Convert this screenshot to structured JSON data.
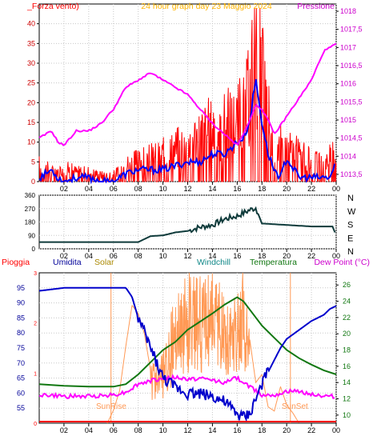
{
  "colors": {
    "wind_speed": "#ff0000",
    "wind_gust": "#ff0000",
    "wind_avg": "#0000ff",
    "pressure": "#ff00ff",
    "direction": "#0f3b3b",
    "humidity": "#0000cc",
    "solar": "#ff9955",
    "temperature": "#117711",
    "dewpoint": "#ff00ff",
    "rain": "#ff0000",
    "sunline": "#ff9955",
    "title": "#ffb400",
    "windchill": "#118888"
  },
  "header": {
    "title": "24 hour graph day  23 Maggio 2024",
    "wind_label": "_Forza vento)",
    "pressure_label": "Pressione"
  },
  "dir_labels": [
    "N",
    "W",
    "S",
    "E",
    "N"
  ],
  "bottom_header": {
    "rain": "Pioggia",
    "humidity": "Umidita",
    "solar": "Solar",
    "windchill": "Windchill",
    "temperature": "Temperatura",
    "dewpoint": "Dew Point (°C)"
  },
  "annotations": {
    "sunrise": "SunRise",
    "sunset": "SunSet"
  },
  "chart_data": [
    {
      "type": "line",
      "title": "24 hour graph day  23 Maggio 2024",
      "x_ticks": [
        "02",
        "04",
        "06",
        "08",
        "10",
        "12",
        "14",
        "16",
        "18",
        "20",
        "22",
        "00"
      ],
      "ylim": [
        0,
        45
      ],
      "y_ticks": [
        0,
        5,
        10,
        15,
        20,
        25,
        30,
        35,
        40
      ],
      "y2lim": [
        1013.3,
        1018.2
      ],
      "y2_ticks": [
        "1013,5",
        "1014",
        "1014,5",
        "1015",
        "1015,5",
        "1016",
        "1016,5",
        "1017",
        "1017,5",
        "1018"
      ],
      "series": [
        {
          "axis": "y",
          "hours": [
            0,
            1,
            2,
            3,
            4,
            5,
            6,
            7,
            8,
            9,
            10,
            11,
            12,
            13,
            14,
            15,
            16,
            17,
            17.5,
            18,
            18.5,
            19,
            20,
            21,
            22,
            23,
            23.5,
            24
          ],
          "values": [
            5,
            3,
            4,
            3,
            3,
            2,
            2,
            5,
            6,
            7,
            8,
            10,
            12,
            14,
            16,
            17,
            18,
            25,
            44,
            30,
            20,
            12,
            10,
            8,
            6,
            5,
            7,
            9
          ]
        },
        {
          "axis": "y",
          "hours": [
            0,
            0.5,
            1,
            1.5,
            2,
            3,
            4,
            5,
            6,
            7,
            8,
            9,
            10,
            11,
            12,
            13,
            14,
            15,
            16,
            16.5,
            17,
            17.5,
            18,
            18.5,
            19,
            19.5,
            20,
            21,
            22,
            23,
            23.5,
            24
          ],
          "values": [
            1,
            2,
            3,
            1,
            0,
            1,
            1,
            0,
            0,
            2,
            3,
            3,
            3,
            4,
            5,
            5,
            7,
            7,
            10,
            11,
            15,
            26,
            15,
            7,
            3,
            1,
            6,
            1,
            1,
            1,
            1,
            5
          ]
        },
        {
          "axis": "y2",
          "hours": [
            0,
            1,
            1.5,
            2,
            3,
            4,
            5,
            6,
            7,
            8,
            9,
            10,
            11,
            12,
            13,
            14,
            15,
            16,
            16.5,
            17,
            17.5,
            18,
            18.5,
            19,
            20,
            21,
            22,
            23,
            24
          ],
          "values": [
            1014.5,
            1014.7,
            1014.4,
            1014.3,
            1014.7,
            1014.7,
            1014.9,
            1015.3,
            1015.9,
            1016.1,
            1016.3,
            1016.1,
            1015.9,
            1015.7,
            1015.3,
            1014.9,
            1014.6,
            1014.3,
            1014.6,
            1015.0,
            1015.4,
            1015.3,
            1015.0,
            1014.6,
            1015.1,
            1015.6,
            1016.1,
            1016.9,
            1017.1
          ]
        }
      ]
    },
    {
      "type": "line",
      "x_ticks": [
        "02",
        "04",
        "06",
        "08",
        "10",
        "12",
        "14",
        "16",
        "18",
        "20",
        "22",
        "00"
      ],
      "ylim": [
        0,
        360
      ],
      "y_ticks": [
        0,
        90,
        180,
        270,
        360
      ],
      "y_tick_labels": [
        "0",
        "90",
        "180",
        "270",
        "360"
      ],
      "series": [
        {
          "hours": [
            0,
            2,
            4,
            6,
            8,
            9,
            10,
            11,
            12,
            13,
            14,
            15,
            16,
            17,
            17.5,
            18,
            20,
            22,
            23.7,
            24
          ],
          "values": [
            45,
            45,
            45,
            45,
            45,
            85,
            90,
            110,
            120,
            145,
            160,
            200,
            220,
            260,
            275,
            170,
            160,
            150,
            150,
            90
          ]
        }
      ]
    },
    {
      "type": "line",
      "x_ticks": [
        "02",
        "04",
        "06",
        "08",
        "10",
        "12",
        "14",
        "16",
        "18",
        "20",
        "22",
        "00"
      ],
      "ylim": [
        50,
        100
      ],
      "y_ticks": [
        55,
        60,
        65,
        70,
        75,
        80,
        85,
        90,
        95
      ],
      "y2lim": [
        9,
        27.5
      ],
      "y2_ticks": [
        10,
        12,
        14,
        16,
        18,
        20,
        22,
        24,
        26
      ],
      "series": [
        {
          "name": "Umidita",
          "axis": "y",
          "hours": [
            0,
            2,
            3,
            5,
            6,
            7,
            7.5,
            8,
            9,
            10,
            11,
            12,
            13,
            14,
            15,
            16,
            16.5,
            17,
            17.5,
            18,
            19,
            19.5,
            20,
            21,
            22,
            23,
            23.5,
            24
          ],
          "values": [
            94,
            95,
            95,
            95,
            95,
            95,
            92,
            85,
            75,
            65,
            62,
            60,
            60,
            59,
            57,
            53,
            52,
            53,
            58,
            63,
            71,
            75,
            78,
            81,
            84,
            86,
            88,
            89
          ]
        },
        {
          "name": "Solar",
          "axis": "r",
          "hours": [
            0,
            5.5,
            6,
            6.5,
            7,
            7.5,
            8,
            8.5,
            9,
            10,
            11,
            12,
            13,
            14,
            15,
            16,
            16.5,
            17,
            17.5,
            18,
            18.5,
            19,
            19.5,
            20,
            20.5,
            21,
            24
          ],
          "values": [
            0,
            0,
            320,
            800,
            1900,
            2900,
            2700,
            2200,
            1300,
            1600,
            2900,
            3500,
            3300,
            3600,
            2800,
            3000,
            3500,
            2100,
            1000,
            1200,
            400,
            300,
            900,
            450,
            250,
            0,
            0
          ]
        },
        {
          "name": "Temperatura",
          "axis": "y2",
          "hours": [
            0,
            2,
            4,
            6,
            7,
            8,
            9,
            10,
            11,
            12,
            13,
            14,
            15,
            16,
            16.5,
            17,
            18,
            19,
            20,
            21,
            22,
            23,
            24
          ],
          "values": [
            13.8,
            13.6,
            13.5,
            13.5,
            13.8,
            15.0,
            16.5,
            18.0,
            19.0,
            20.5,
            21.5,
            22.5,
            23.6,
            24.5,
            24.0,
            23.0,
            21.0,
            19.5,
            18.0,
            17.0,
            16.2,
            15.5,
            15.0
          ]
        },
        {
          "name": "Dew Point (°C)",
          "axis": "y2",
          "hours": [
            0,
            2,
            4,
            6,
            7,
            8,
            9,
            10,
            11,
            12,
            13,
            14,
            15,
            16,
            17,
            18,
            19,
            20,
            21,
            22,
            23,
            24
          ],
          "values": [
            12.5,
            12.3,
            12.3,
            12.5,
            12.8,
            13.8,
            14.2,
            14.5,
            14.6,
            14.4,
            14.5,
            14.3,
            14.0,
            14.6,
            13.5,
            12.5,
            12.5,
            12.9,
            12.9,
            12.6,
            12.3,
            12.3
          ]
        },
        {
          "name": "Pioggia",
          "axis": "y2",
          "hours": [
            0,
            24
          ],
          "values": [
            9.2,
            9.2
          ]
        }
      ],
      "annotations": [
        {
          "text": "SunRise",
          "hour": 5.8
        },
        {
          "text": "SunSet",
          "hour": 20.3
        }
      ]
    }
  ]
}
